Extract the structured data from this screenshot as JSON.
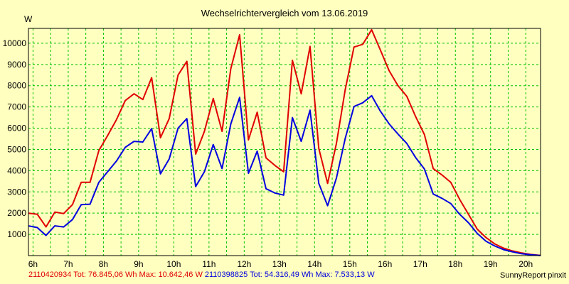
{
  "chart_data": {
    "type": "line",
    "title": "Wechselrichtervergleich vom 13.06.2019",
    "ylabel": "W",
    "xlabel": "",
    "ylim": [
      0,
      10700
    ],
    "yticks": [
      1000,
      2000,
      3000,
      4000,
      5000,
      6000,
      7000,
      8000,
      9000,
      10000
    ],
    "xticks": [
      "6h",
      "7h",
      "8h",
      "9h",
      "10h",
      "11h",
      "12h",
      "13h",
      "14h",
      "15h",
      "16h",
      "17h",
      "18h",
      "19h",
      "20h"
    ],
    "xlim_hours": [
      5.87,
      20.42
    ],
    "grid": true,
    "x": [
      5.87,
      6.12,
      6.37,
      6.62,
      6.87,
      7.12,
      7.37,
      7.62,
      7.87,
      8.12,
      8.37,
      8.62,
      8.87,
      9.12,
      9.37,
      9.62,
      9.87,
      10.12,
      10.37,
      10.62,
      10.87,
      11.12,
      11.37,
      11.62,
      11.87,
      12.12,
      12.37,
      12.62,
      12.87,
      13.12,
      13.37,
      13.62,
      13.87,
      14.12,
      14.37,
      14.62,
      14.87,
      15.12,
      15.37,
      15.62,
      15.87,
      16.12,
      16.37,
      16.62,
      16.87,
      17.12,
      17.37,
      17.62,
      17.87,
      18.12,
      18.37,
      18.62,
      18.87,
      19.12,
      19.37,
      19.62,
      19.87,
      20.12,
      20.42
    ],
    "series": [
      {
        "name": "2110420934",
        "color": "#e00000",
        "values": [
          2000,
          1950,
          1350,
          2050,
          1980,
          2400,
          3450,
          3450,
          4950,
          5650,
          6400,
          7300,
          7620,
          7350,
          8380,
          5550,
          6450,
          8500,
          9150,
          4780,
          5850,
          7400,
          5850,
          8800,
          10400,
          5450,
          6750,
          4600,
          4250,
          3950,
          9200,
          7620,
          9850,
          5050,
          3400,
          5280,
          7820,
          9820,
          9950,
          10640,
          9680,
          8700,
          8000,
          7500,
          6550,
          5700,
          4100,
          3800,
          3450,
          2650,
          1950,
          1250,
          850,
          550,
          350,
          220,
          130,
          60,
          10
        ]
      },
      {
        "name": "2110398825",
        "color": "#0000e0",
        "values": [
          1400,
          1320,
          950,
          1400,
          1350,
          1700,
          2400,
          2420,
          3450,
          3950,
          4450,
          5100,
          5380,
          5350,
          5980,
          3850,
          4550,
          6000,
          6450,
          3250,
          3950,
          5230,
          4100,
          6200,
          7450,
          3880,
          4920,
          3150,
          2950,
          2850,
          6500,
          5380,
          6850,
          3400,
          2350,
          3650,
          5520,
          7020,
          7200,
          7530,
          6800,
          6200,
          5720,
          5280,
          4620,
          4080,
          2900,
          2700,
          2450,
          1950,
          1550,
          1050,
          680,
          450,
          280,
          180,
          90,
          40,
          5
        ]
      }
    ]
  },
  "footer": {
    "series1": "2110420934 Tot: 76.845,06 Wh Max: 10.642,46 W",
    "series2": "2110398825 Tot: 54.316,49 Wh Max: 7.533,13 W",
    "credit": "SunnyReport pinxit"
  }
}
